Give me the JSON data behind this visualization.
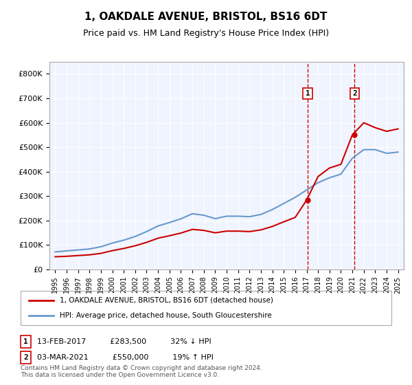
{
  "title": "1, OAKDALE AVENUE, BRISTOL, BS16 6DT",
  "subtitle": "Price paid vs. HM Land Registry's House Price Index (HPI)",
  "ylabel": "",
  "background_color": "#ffffff",
  "plot_bg_color": "#f0f4ff",
  "grid_color": "#ffffff",
  "hpi_color": "#6699cc",
  "price_color": "#cc0000",
  "transaction1": {
    "date": "13-FEB-2017",
    "price": 283500,
    "label": "1",
    "note": "32% ↓ HPI",
    "year": 2017.1
  },
  "transaction2": {
    "date": "03-MAR-2021",
    "price": 550000,
    "label": "2",
    "note": "19% ↑ HPI",
    "year": 2021.2
  },
  "legend_line1": "1, OAKDALE AVENUE, BRISTOL, BS16 6DT (detached house)",
  "legend_line2": "HPI: Average price, detached house, South Gloucestershire",
  "footer": "Contains HM Land Registry data © Crown copyright and database right 2024.\nThis data is licensed under the Open Government Licence v3.0.",
  "ylim": [
    0,
    850000
  ],
  "yticks": [
    0,
    100000,
    200000,
    300000,
    400000,
    500000,
    600000,
    700000,
    800000
  ],
  "ytick_labels": [
    "£0",
    "£100K",
    "£200K",
    "£300K",
    "£400K",
    "£500K",
    "£600K",
    "£700K",
    "£800K"
  ],
  "hpi_years": [
    1995,
    1996,
    1997,
    1998,
    1999,
    2000,
    2001,
    2002,
    2003,
    2004,
    2005,
    2006,
    2007,
    2008,
    2009,
    2010,
    2011,
    2012,
    2013,
    2014,
    2015,
    2016,
    2017,
    2018,
    2019,
    2020,
    2021,
    2022,
    2023,
    2024,
    2025
  ],
  "hpi_values": [
    72000,
    76000,
    80000,
    84000,
    93000,
    108000,
    120000,
    135000,
    155000,
    178000,
    192000,
    207000,
    228000,
    222000,
    208000,
    218000,
    218000,
    216000,
    225000,
    245000,
    270000,
    295000,
    325000,
    355000,
    375000,
    390000,
    455000,
    490000,
    490000,
    475000,
    480000
  ],
  "price_years": [
    1995,
    1996,
    1997,
    1998,
    1999,
    2000,
    2001,
    2002,
    2003,
    2004,
    2005,
    2006,
    2007,
    2008,
    2009,
    2010,
    2011,
    2012,
    2013,
    2014,
    2015,
    2016,
    2017,
    2018,
    2019,
    2020,
    2021,
    2022,
    2023,
    2024,
    2025
  ],
  "price_values": [
    52000,
    54000,
    57000,
    60000,
    66000,
    77000,
    86000,
    97000,
    111000,
    128000,
    138000,
    149000,
    164000,
    160000,
    150000,
    157000,
    157000,
    155000,
    162000,
    176000,
    195000,
    213000,
    283500,
    380000,
    415000,
    430000,
    550000,
    600000,
    580000,
    565000,
    575000
  ],
  "xlim_start": 1994.5,
  "xlim_end": 2025.5
}
